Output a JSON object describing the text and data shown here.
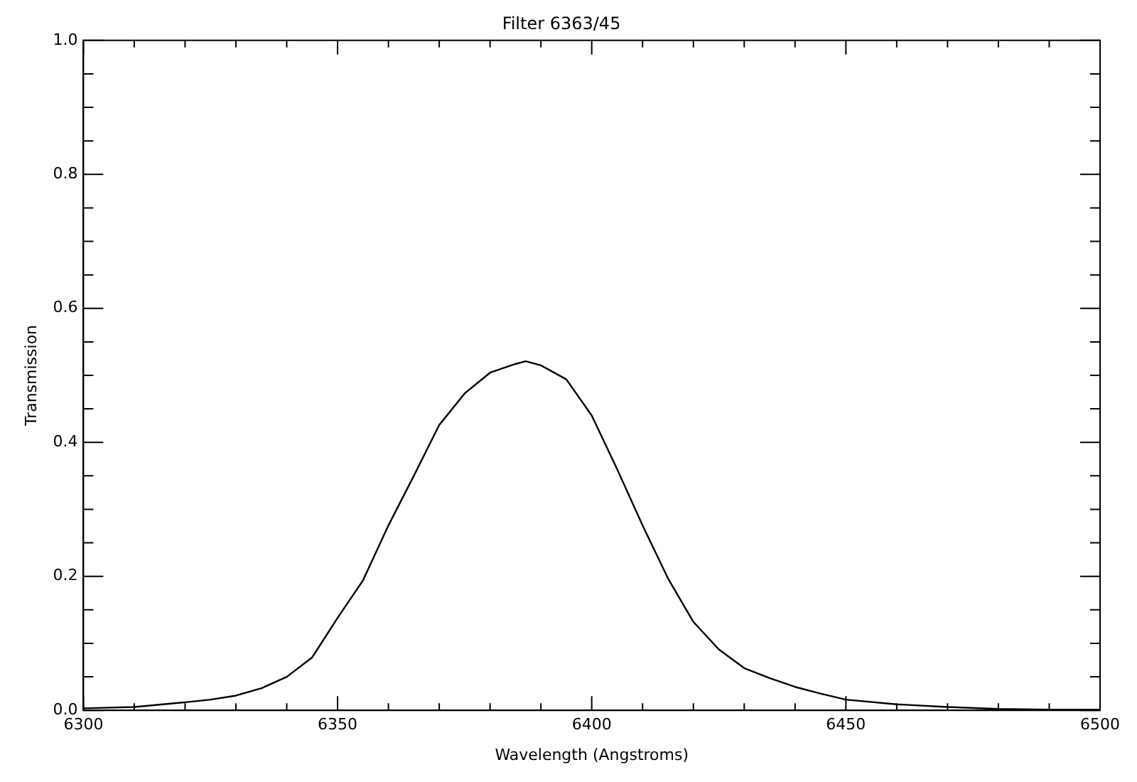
{
  "chart_data": {
    "type": "line",
    "title": "Filter 6363/45",
    "xlabel": "Wavelength (Angstroms)",
    "ylabel": "Transmission",
    "xlim": [
      6300,
      6500
    ],
    "xticks": [
      6300,
      {
        "value": 6310,
        "label": null
      },
      {
        "value": 6320,
        "label": null
      },
      {
        "value": 6330,
        "label": null
      },
      {
        "value": 6340,
        "label": null
      },
      6350,
      {
        "value": 6360,
        "label": null
      },
      {
        "value": 6370,
        "label": null
      },
      {
        "value": 6380,
        "label": null
      },
      {
        "value": 6390,
        "label": null
      },
      6400,
      {
        "value": 6410,
        "label": null
      },
      {
        "value": 6420,
        "label": null
      },
      {
        "value": 6430,
        "label": null
      },
      {
        "value": 6440,
        "label": null
      },
      6450,
      {
        "value": 6460,
        "label": null
      },
      {
        "value": 6470,
        "label": null
      },
      {
        "value": 6480,
        "label": null
      },
      {
        "value": 6490,
        "label": null
      },
      6500
    ],
    "ylim": [
      0,
      1
    ],
    "yticks": [
      {
        "value": 0,
        "label": "0.0"
      },
      {
        "value": 0.05,
        "label": null
      },
      {
        "value": 0.1,
        "label": null
      },
      {
        "value": 0.15,
        "label": null
      },
      0.2,
      {
        "value": 0.25,
        "label": null
      },
      {
        "value": 0.3,
        "label": null
      },
      {
        "value": 0.35,
        "label": null
      },
      0.4,
      {
        "value": 0.45,
        "label": null
      },
      {
        "value": 0.5,
        "label": null
      },
      {
        "value": 0.55,
        "label": null
      },
      0.6,
      {
        "value": 0.65,
        "label": null
      },
      {
        "value": 0.7,
        "label": null
      },
      {
        "value": 0.75,
        "label": null
      },
      0.8,
      {
        "value": 0.85,
        "label": null
      },
      {
        "value": 0.9,
        "label": null
      },
      {
        "value": 0.95,
        "label": null
      },
      {
        "value": 1,
        "label": "1.0"
      }
    ],
    "x": [
      6300,
      6310,
      6320,
      6325,
      6330,
      6335,
      6340,
      6345,
      6350,
      6355,
      6360,
      6365,
      6370,
      6375,
      6380,
      6385,
      6387,
      6390,
      6395,
      6400,
      6405,
      6410,
      6415,
      6420,
      6425,
      6430,
      6435,
      6440,
      6445,
      6450,
      6460,
      6470,
      6480,
      6490,
      6500
    ],
    "series": [
      {
        "color": "#000000",
        "values": [
          0.003,
          0.005,
          0.012,
          0.016,
          0.022,
          0.033,
          0.05,
          0.079,
          0.138,
          0.194,
          0.276,
          0.35,
          0.426,
          0.473,
          0.504,
          0.517,
          0.521,
          0.515,
          0.494,
          0.44,
          0.36,
          0.276,
          0.197,
          0.132,
          0.091,
          0.063,
          0.048,
          0.035,
          0.025,
          0.016,
          0.009,
          0.005,
          0.002,
          0.001,
          0.001
        ]
      }
    ],
    "grid": false,
    "legend": false,
    "marker": "none",
    "line_style": "solid"
  }
}
